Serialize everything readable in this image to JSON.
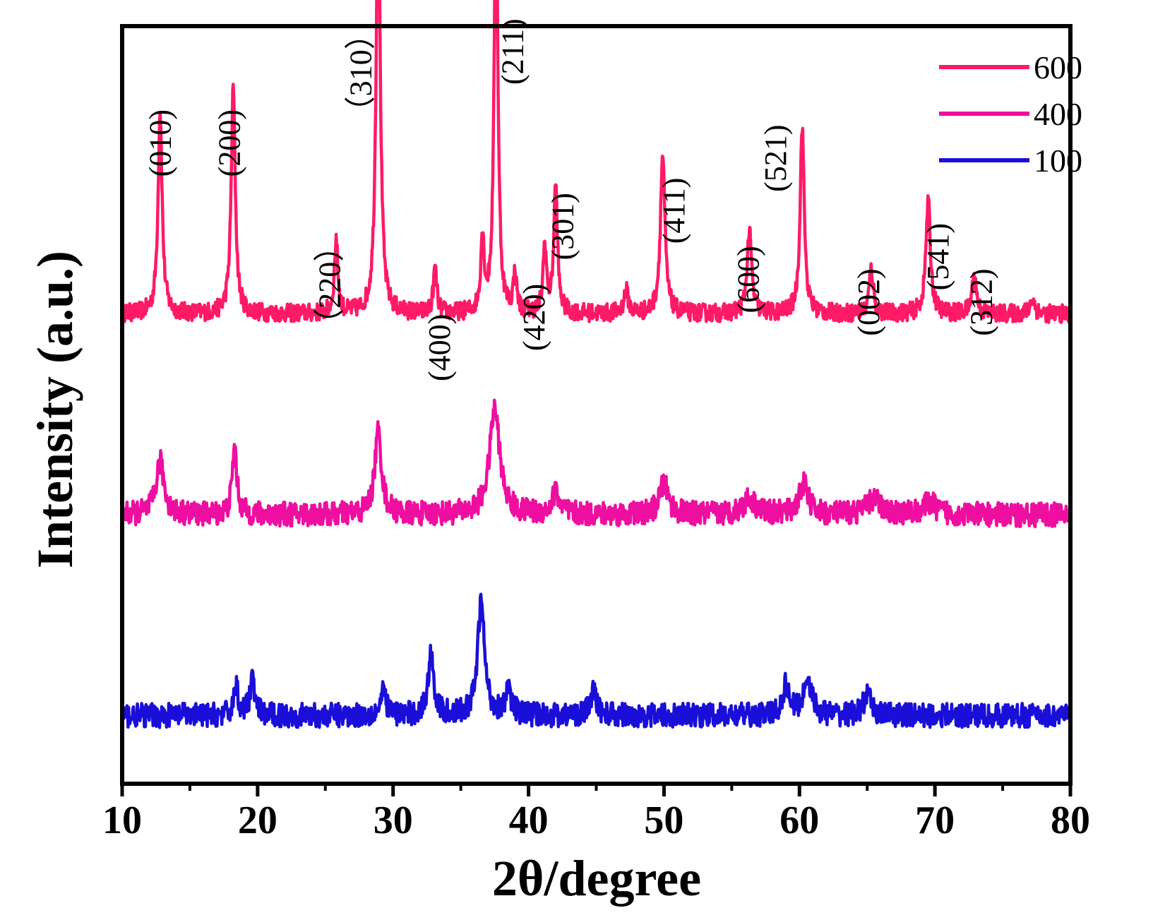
{
  "chart_data": {
    "type": "line",
    "title": "",
    "xlabel": "2θ/degree",
    "ylabel": "Intensity (a.u.)",
    "xlim": [
      10,
      80
    ],
    "ylim": [
      0,
      1
    ],
    "x_ticks": [
      "10",
      "20",
      "30",
      "40",
      "50",
      "60",
      "70",
      "80"
    ],
    "legend_position": "top-right",
    "series": [
      {
        "name": "600",
        "color": "#ff1a66",
        "offset": 0.62,
        "noise": 0.012,
        "peaks": [
          {
            "x": 12.8,
            "h": 0.27,
            "w": 0.18
          },
          {
            "x": 18.2,
            "h": 0.3,
            "w": 0.18
          },
          {
            "x": 25.8,
            "h": 0.1,
            "w": 0.15
          },
          {
            "x": 28.9,
            "h": 0.58,
            "w": 0.18
          },
          {
            "x": 33.1,
            "h": 0.06,
            "w": 0.15
          },
          {
            "x": 36.6,
            "h": 0.1,
            "w": 0.15
          },
          {
            "x": 37.6,
            "h": 0.58,
            "w": 0.16
          },
          {
            "x": 39.0,
            "h": 0.05,
            "w": 0.15
          },
          {
            "x": 41.2,
            "h": 0.09,
            "w": 0.15
          },
          {
            "x": 42.0,
            "h": 0.17,
            "w": 0.16
          },
          {
            "x": 47.2,
            "h": 0.03,
            "w": 0.2
          },
          {
            "x": 49.9,
            "h": 0.21,
            "w": 0.2
          },
          {
            "x": 56.3,
            "h": 0.11,
            "w": 0.2
          },
          {
            "x": 60.2,
            "h": 0.25,
            "w": 0.18
          },
          {
            "x": 65.3,
            "h": 0.06,
            "w": 0.18
          },
          {
            "x": 69.5,
            "h": 0.15,
            "w": 0.2
          },
          {
            "x": 72.9,
            "h": 0.05,
            "w": 0.2
          },
          {
            "x": 77.2,
            "h": 0.02,
            "w": 0.2
          }
        ]
      },
      {
        "name": "400",
        "color": "#ee0fa0",
        "offset": 0.355,
        "noise": 0.016,
        "peaks": [
          {
            "x": 12.8,
            "h": 0.07,
            "w": 0.35
          },
          {
            "x": 18.3,
            "h": 0.09,
            "w": 0.2
          },
          {
            "x": 28.9,
            "h": 0.11,
            "w": 0.3
          },
          {
            "x": 37.5,
            "h": 0.14,
            "w": 0.45
          },
          {
            "x": 42.0,
            "h": 0.03,
            "w": 0.3
          },
          {
            "x": 50.0,
            "h": 0.04,
            "w": 0.4
          },
          {
            "x": 56.3,
            "h": 0.02,
            "w": 0.6
          },
          {
            "x": 60.3,
            "h": 0.04,
            "w": 0.4
          },
          {
            "x": 65.5,
            "h": 0.02,
            "w": 0.6
          },
          {
            "x": 69.6,
            "h": 0.015,
            "w": 0.6
          }
        ]
      },
      {
        "name": "100",
        "color": "#1a0fd8",
        "offset": 0.09,
        "noise": 0.016,
        "peaks": [
          {
            "x": 18.4,
            "h": 0.04,
            "w": 0.2
          },
          {
            "x": 19.6,
            "h": 0.05,
            "w": 0.2
          },
          {
            "x": 29.3,
            "h": 0.03,
            "w": 0.25
          },
          {
            "x": 32.8,
            "h": 0.08,
            "w": 0.25
          },
          {
            "x": 36.5,
            "h": 0.15,
            "w": 0.3
          },
          {
            "x": 38.5,
            "h": 0.03,
            "w": 0.3
          },
          {
            "x": 44.8,
            "h": 0.03,
            "w": 0.3
          },
          {
            "x": 59.0,
            "h": 0.04,
            "w": 0.3
          },
          {
            "x": 60.6,
            "h": 0.05,
            "w": 0.35
          },
          {
            "x": 65.0,
            "h": 0.025,
            "w": 0.35
          }
        ]
      }
    ],
    "annotations": [
      {
        "text": "(010)",
        "x": 12.8,
        "y_top": 0.89
      },
      {
        "text": "(200)",
        "x": 17.9,
        "y_top": 0.89
      },
      {
        "text": "（220）",
        "x": 25.3,
        "y_top": 0.73
      },
      {
        "text": "（310）",
        "x": 27.6,
        "y_top": 1.01
      },
      {
        "text": "(400)",
        "x": 33.4,
        "y_top": 0.62
      },
      {
        "text": "(211)",
        "x": 38.8,
        "y_top": 1.01
      },
      {
        "text": "(420)",
        "x": 40.4,
        "y_top": 0.66
      },
      {
        "text": "(301)",
        "x": 42.5,
        "y_top": 0.78
      },
      {
        "text": "(411)",
        "x": 50.7,
        "y_top": 0.8
      },
      {
        "text": "(600)",
        "x": 56.2,
        "y_top": 0.71
      },
      {
        "text": "(521)",
        "x": 58.2,
        "y_top": 0.87
      },
      {
        "text": "(002)",
        "x": 65.1,
        "y_top": 0.68
      },
      {
        "text": "(541)",
        "x": 70.2,
        "y_top": 0.74
      },
      {
        "text": "(312)",
        "x": 73.4,
        "y_top": 0.68
      }
    ]
  }
}
